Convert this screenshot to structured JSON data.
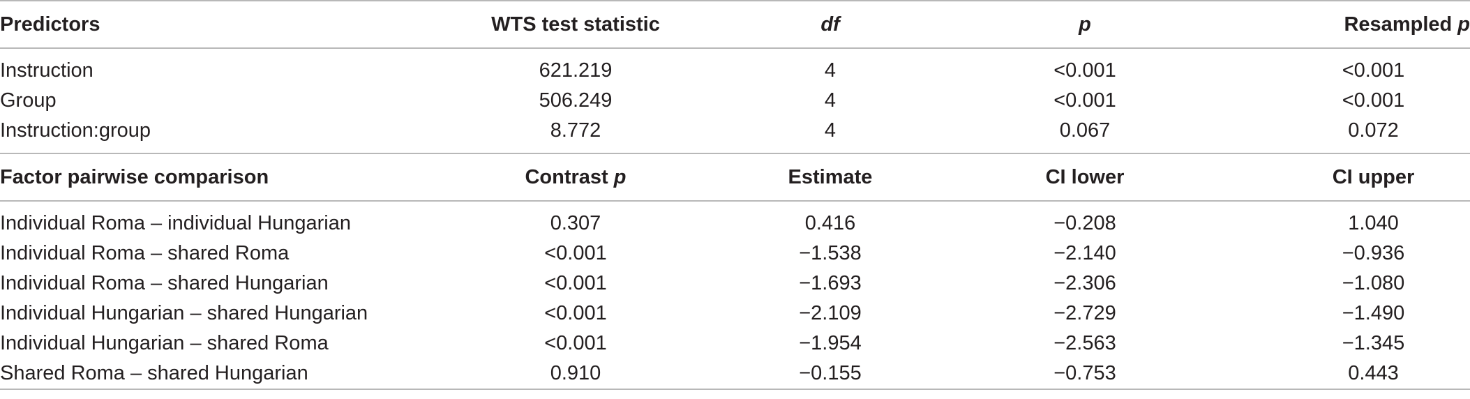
{
  "section1": {
    "headers": {
      "predictors": "Predictors",
      "wts": "WTS test statistic",
      "df": "df",
      "p": "p",
      "resampled_prefix": "Resampled ",
      "resampled_p": "p"
    },
    "rows": [
      {
        "predictor": "Instruction",
        "wts": "621.219",
        "df": "4",
        "p": "<0.001",
        "resampled": "<0.001"
      },
      {
        "predictor": "Group",
        "wts": "506.249",
        "df": "4",
        "p": "<0.001",
        "resampled": "<0.001"
      },
      {
        "predictor": "Instruction:group",
        "wts": "8.772",
        "df": "4",
        "p": "0.067",
        "resampled": "0.072"
      }
    ]
  },
  "section2": {
    "headers": {
      "comparison": "Factor pairwise comparison",
      "contrast_prefix": "Contrast ",
      "contrast_p": "p",
      "estimate": "Estimate",
      "ci_lower": "CI lower",
      "ci_upper": "CI upper"
    },
    "rows": [
      {
        "comparison": "Individual Roma – individual Hungarian",
        "contrast": "0.307",
        "estimate": "0.416",
        "ci_lower": "−0.208",
        "ci_upper": "1.040"
      },
      {
        "comparison": "Individual Roma – shared Roma",
        "contrast": "<0.001",
        "estimate": "−1.538",
        "ci_lower": "−2.140",
        "ci_upper": "−0.936"
      },
      {
        "comparison": "Individual Roma – shared Hungarian",
        "contrast": "<0.001",
        "estimate": "−1.693",
        "ci_lower": "−2.306",
        "ci_upper": "−1.080"
      },
      {
        "comparison": "Individual Hungarian – shared Hungarian",
        "contrast": "<0.001",
        "estimate": "−2.109",
        "ci_lower": "−2.729",
        "ci_upper": "−1.490"
      },
      {
        "comparison": "Individual Hungarian – shared Roma",
        "contrast": "<0.001",
        "estimate": "−1.954",
        "ci_lower": "−2.563",
        "ci_upper": "−1.345"
      },
      {
        "comparison": "Shared Roma – shared Hungarian",
        "contrast": "0.910",
        "estimate": "−0.155",
        "ci_lower": "−0.753",
        "ci_upper": "0.443"
      }
    ]
  }
}
